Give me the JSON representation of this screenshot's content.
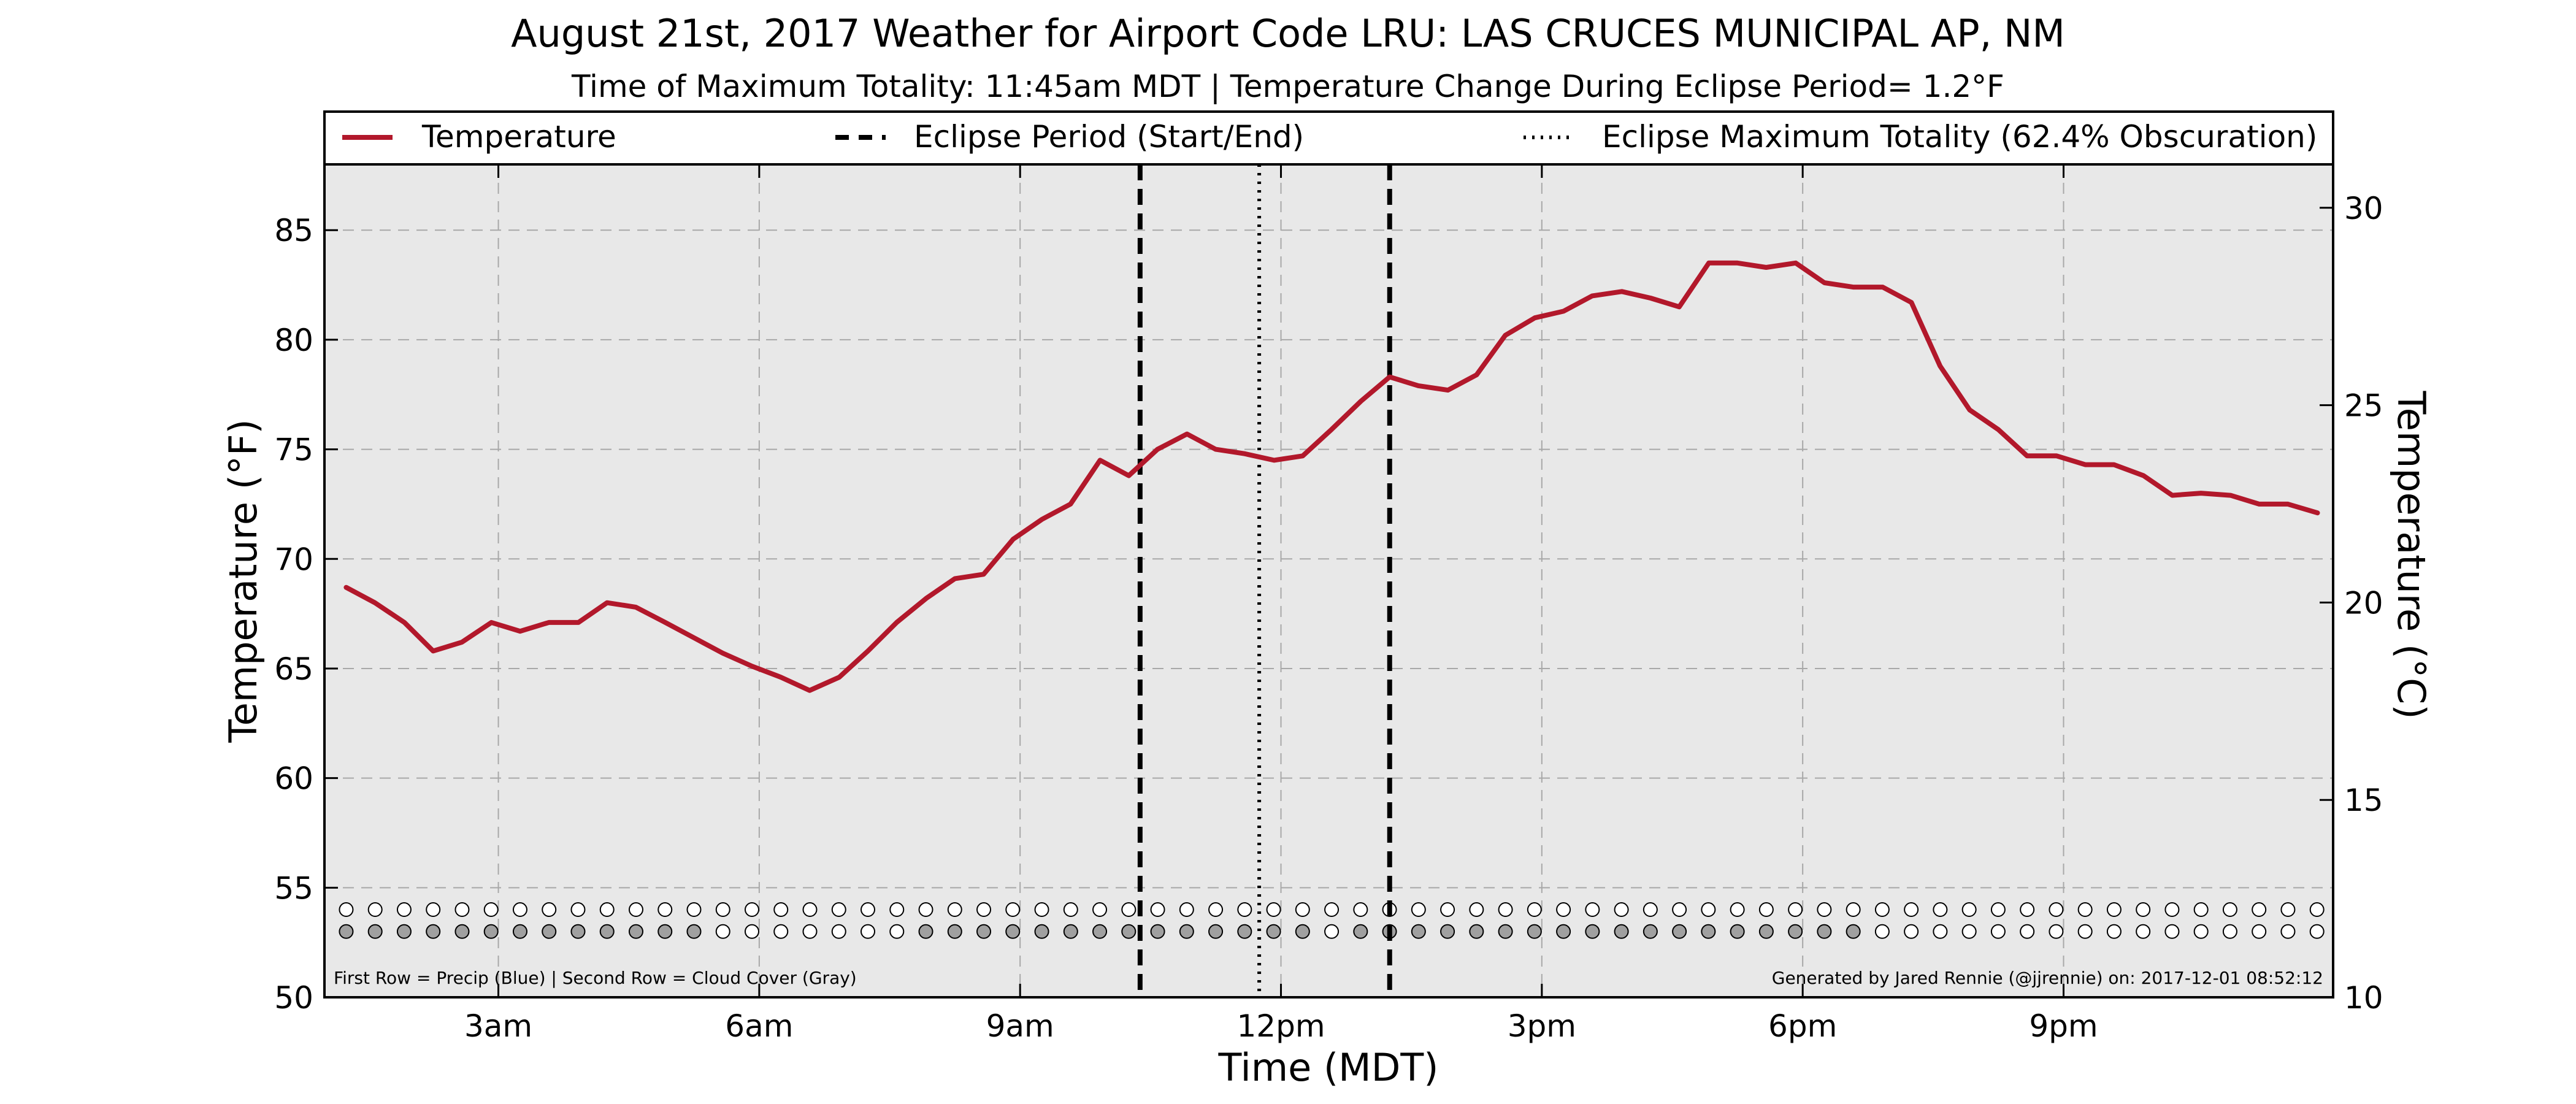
{
  "chart_data": {
    "type": "line",
    "title": "August 21st, 2017 Weather for Airport Code LRU: LAS CRUCES MUNICIPAL AP, NM",
    "subtitle": "Time of Maximum Totality: 11:45am MDT | Temperature Change During Eclipse Period= 1.2°F",
    "xlabel": "Time (MDT)",
    "ylabel": "Temperature (°F)",
    "ylabel_right": "Temperature (°C)",
    "xlim": [
      1.0,
      24.1
    ],
    "ylim": [
      50,
      88
    ],
    "ylim_right": [
      10,
      31.1
    ],
    "x_ticks": [
      {
        "x": 3,
        "label": "3am"
      },
      {
        "x": 6,
        "label": "6am"
      },
      {
        "x": 9,
        "label": "9am"
      },
      {
        "x": 12,
        "label": "12pm"
      },
      {
        "x": 15,
        "label": "3pm"
      },
      {
        "x": 18,
        "label": "6pm"
      },
      {
        "x": 21,
        "label": "9pm"
      }
    ],
    "y_ticks": [
      50,
      55,
      60,
      65,
      70,
      75,
      80,
      85
    ],
    "y_ticks_right": [
      10,
      15,
      20,
      25,
      30
    ],
    "grid": true,
    "legend_position": "top",
    "legend": [
      {
        "label": "Temperature",
        "style": "solid",
        "color": "#b2182b"
      },
      {
        "label": "Eclipse Period (Start/End)",
        "style": "dashed",
        "color": "#000000"
      },
      {
        "label": "Eclipse Maximum Totality (62.4% Obscuration)",
        "style": "dotted",
        "color": "#000000"
      }
    ],
    "series": [
      {
        "name": "Temperature",
        "color": "#b2182b",
        "points": [
          [
            1.25,
            68.7
          ],
          [
            1.58,
            68.0
          ],
          [
            1.92,
            67.1
          ],
          [
            2.25,
            65.8
          ],
          [
            2.58,
            66.2
          ],
          [
            2.92,
            67.1
          ],
          [
            3.25,
            66.7
          ],
          [
            3.58,
            67.1
          ],
          [
            3.92,
            67.1
          ],
          [
            4.25,
            68.0
          ],
          [
            4.58,
            67.8
          ],
          [
            4.92,
            67.1
          ],
          [
            5.25,
            66.4
          ],
          [
            5.58,
            65.7
          ],
          [
            5.92,
            65.1
          ],
          [
            6.25,
            64.6
          ],
          [
            6.58,
            64.0
          ],
          [
            6.92,
            64.6
          ],
          [
            7.25,
            65.8
          ],
          [
            7.58,
            67.1
          ],
          [
            7.92,
            68.2
          ],
          [
            8.25,
            69.1
          ],
          [
            8.58,
            69.3
          ],
          [
            8.92,
            70.9
          ],
          [
            9.25,
            71.8
          ],
          [
            9.58,
            72.5
          ],
          [
            9.92,
            74.5
          ],
          [
            10.25,
            73.8
          ],
          [
            10.58,
            75.0
          ],
          [
            10.92,
            75.7
          ],
          [
            11.25,
            75.0
          ],
          [
            11.58,
            74.8
          ],
          [
            11.92,
            74.5
          ],
          [
            12.25,
            74.7
          ],
          [
            12.58,
            75.9
          ],
          [
            12.92,
            77.2
          ],
          [
            13.25,
            78.3
          ],
          [
            13.58,
            77.9
          ],
          [
            13.92,
            77.7
          ],
          [
            14.25,
            78.4
          ],
          [
            14.58,
            80.2
          ],
          [
            14.92,
            81.0
          ],
          [
            15.25,
            81.3
          ],
          [
            15.58,
            82.0
          ],
          [
            15.92,
            82.2
          ],
          [
            16.25,
            81.9
          ],
          [
            16.58,
            81.5
          ],
          [
            16.92,
            83.5
          ],
          [
            17.25,
            83.5
          ],
          [
            17.58,
            83.3
          ],
          [
            17.92,
            83.5
          ],
          [
            18.25,
            82.6
          ],
          [
            18.58,
            82.4
          ],
          [
            18.92,
            82.4
          ],
          [
            19.25,
            81.7
          ],
          [
            19.58,
            78.8
          ],
          [
            19.92,
            76.8
          ],
          [
            20.25,
            75.9
          ],
          [
            20.58,
            74.7
          ],
          [
            20.92,
            74.7
          ],
          [
            21.25,
            74.3
          ],
          [
            21.58,
            74.3
          ],
          [
            21.92,
            73.8
          ],
          [
            22.25,
            72.9
          ],
          [
            22.58,
            73.0
          ],
          [
            22.92,
            72.9
          ],
          [
            23.25,
            72.5
          ],
          [
            23.58,
            72.5
          ],
          [
            23.92,
            72.1
          ]
        ]
      }
    ],
    "eclipse": {
      "start": 10.38,
      "max": 11.75,
      "end": 13.25
    },
    "markers": {
      "note": "First Row = Precip (Blue) | Second Row = Cloud Cover (Gray)",
      "credit": "Generated by Jared Rennie (@jjrennie) on: 2017-12-01 08:52:12",
      "row1_y": 54.0,
      "row2_y": 53.0,
      "x_start": 1.25,
      "step": 0.3333,
      "count": 69,
      "precip_color": "#ffffff",
      "cloud_filled_color": "#a0a0a0",
      "cloud_empty_color": "#ffffff",
      "cloud_cover": [
        1,
        1,
        1,
        1,
        1,
        1,
        1,
        1,
        1,
        1,
        1,
        1,
        1,
        0,
        0,
        0,
        0,
        0,
        0,
        0,
        1,
        1,
        1,
        1,
        1,
        1,
        1,
        1,
        1,
        1,
        1,
        1,
        1,
        1,
        0,
        1,
        1,
        1,
        1,
        1,
        1,
        1,
        1,
        1,
        1,
        1,
        1,
        1,
        1,
        1,
        1,
        1,
        1,
        0,
        0,
        0,
        0,
        0,
        0,
        0,
        0,
        0,
        0,
        0,
        0,
        0,
        0,
        0,
        0
      ]
    }
  }
}
